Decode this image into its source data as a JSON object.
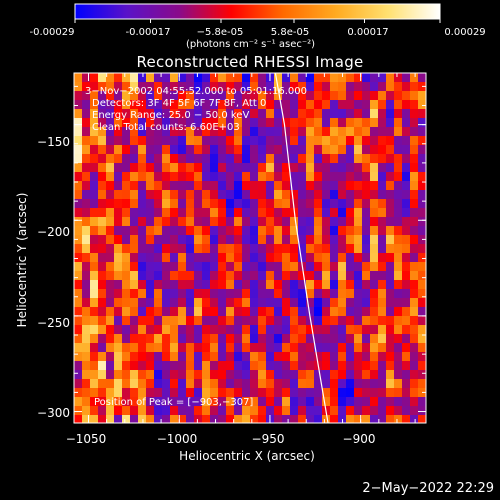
{
  "chart_data": {
    "type": "heatmap",
    "title": "Reconstructed RHESSI Image",
    "xlabel": "Heliocentric X (arcsec)",
    "ylabel": "Heliocentric Y (arcsec)",
    "xlim": [
      -1058,
      -864
    ],
    "ylim": [
      -306,
      -123
    ],
    "x_ticks": [
      -1050,
      -1000,
      -950,
      -900
    ],
    "x_tick_labels": [
      "−1050",
      "−1000",
      "−950",
      "−900"
    ],
    "y_ticks": [
      -150,
      -200,
      -250,
      -300
    ],
    "y_tick_labels": [
      "−150",
      "−200",
      "−250",
      "−300"
    ],
    "colorbar": {
      "min": -0.00029,
      "max": 0.00029,
      "ticks": [
        -0.00029,
        -0.00017,
        -5.8e-05,
        5.8e-05,
        0.00017,
        0.00029
      ],
      "tick_labels": [
        "-0.00029",
        "-0.00017",
        "−5.8e-05",
        "5.8e-05",
        "0.00017",
        "0.00029"
      ],
      "colors": [
        "#0000ff",
        "#5a12c8",
        "#8a0a8a",
        "#ff0000",
        "#ff6a00",
        "#ffaa20",
        "#ffe070",
        "#ffffff"
      ]
    },
    "units": "(photons cm⁻² s⁻¹ asec⁻²)",
    "annotations": {
      "time": "3−Nov−2002 04:55:52.000 to 05:01:16.000",
      "detectors": "Detectors: 3F 4F 5F 6F 7F 8F, Att 0",
      "energy": "Energy Range: 25.0 − 50.0 keV",
      "clean": "Clean    Total counts: 6.60E+03",
      "peak": "Position of Peak = [−903,−307]"
    },
    "limb_curve": [
      [
        -947,
        -123
      ],
      [
        -942,
        -150
      ],
      [
        -936,
        -200
      ],
      [
        -928,
        -250
      ],
      [
        -918,
        -306
      ]
    ],
    "grid": false,
    "seed": 7
  },
  "footer": {
    "timestamp": "2−May−2022 22:29"
  }
}
